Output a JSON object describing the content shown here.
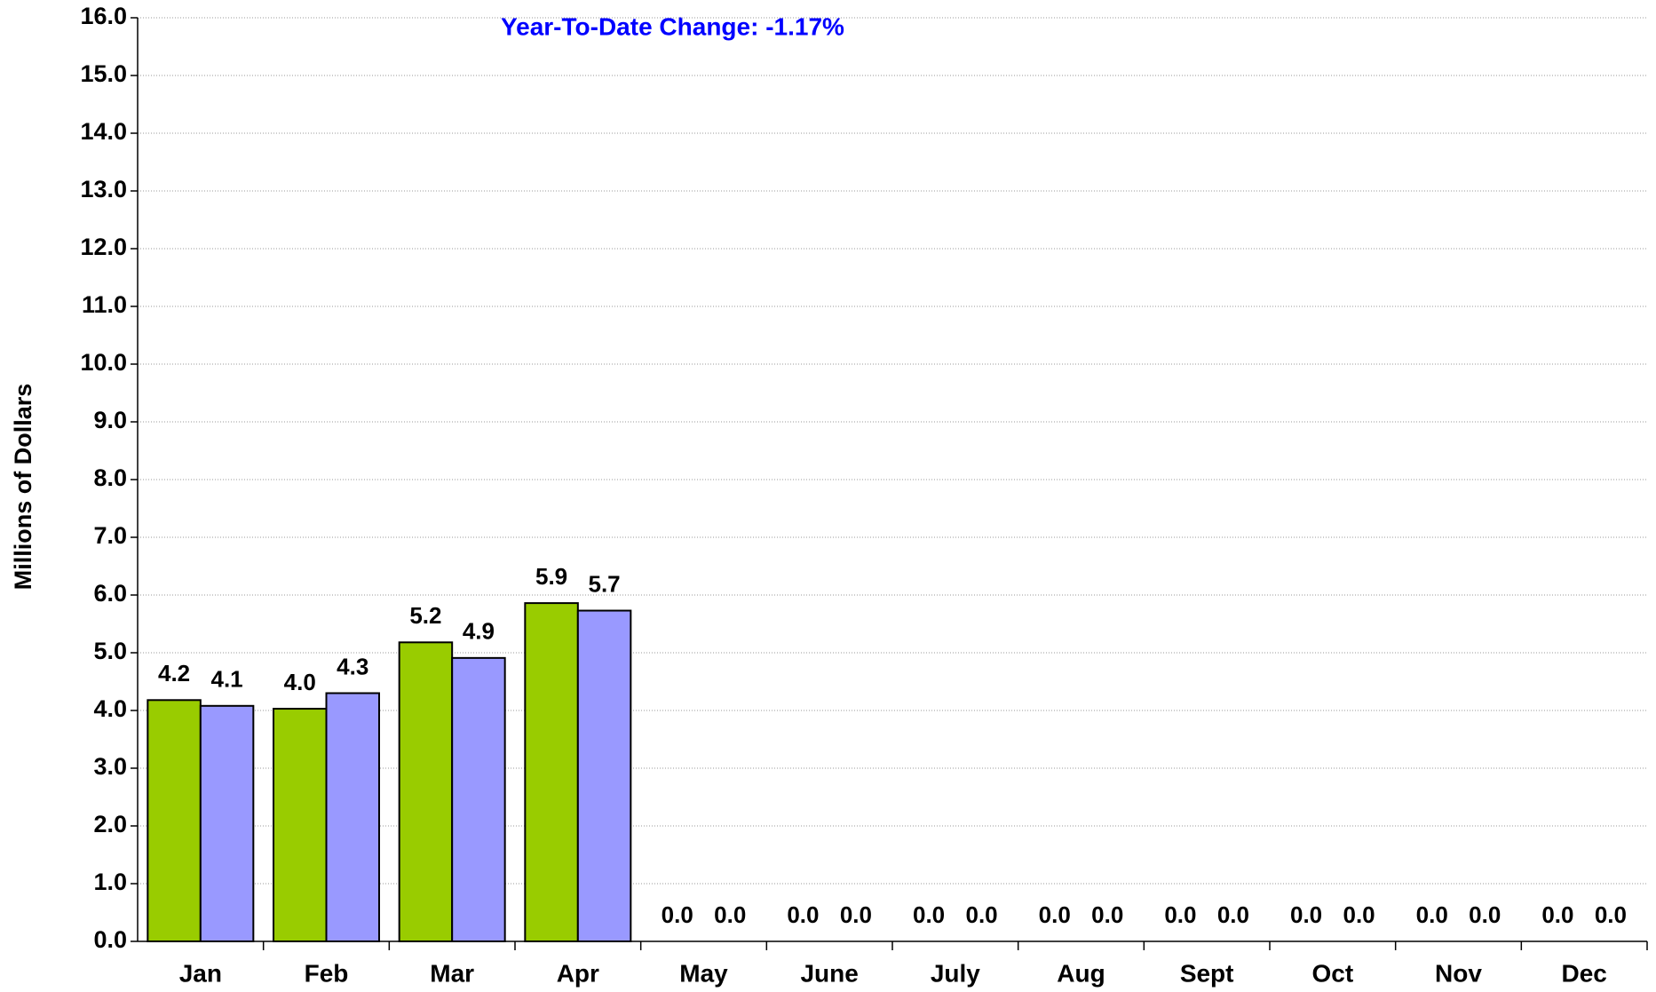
{
  "chart_data": {
    "type": "bar",
    "annotation": "Year-To-Date Change: -1.17%",
    "y_label": "Millions of Dollars",
    "categories": [
      "Jan",
      "Feb",
      "Mar",
      "Apr",
      "May",
      "June",
      "July",
      "Aug",
      "Sept",
      "Oct",
      "Nov",
      "Dec"
    ],
    "series": [
      {
        "color": "#99cc00",
        "values": [
          4.18,
          4.03,
          5.18,
          5.86,
          0,
          0,
          0,
          0,
          0,
          0,
          0,
          0
        ],
        "value_labels": [
          "4.2",
          "4.0",
          "5.2",
          "5.9",
          "0.0",
          "0.0",
          "0.0",
          "0.0",
          "0.0",
          "0.0",
          "0.0",
          "0.0"
        ]
      },
      {
        "color": "#9999ff",
        "values": [
          4.08,
          4.3,
          4.91,
          5.73,
          0,
          0,
          0,
          0,
          0,
          0,
          0,
          0
        ],
        "value_labels": [
          "4.1",
          "4.3",
          "4.9",
          "5.7",
          "0.0",
          "0.0",
          "0.0",
          "0.0",
          "0.0",
          "0.0",
          "0.0",
          "0.0"
        ]
      }
    ],
    "ylim": [
      0,
      16
    ],
    "yticks": [
      {
        "value": 0,
        "label": "0.0"
      },
      {
        "value": 1,
        "label": "1.0"
      },
      {
        "value": 2,
        "label": "2.0"
      },
      {
        "value": 3,
        "label": "3.0"
      },
      {
        "value": 4,
        "label": "4.0"
      },
      {
        "value": 5,
        "label": "5.0"
      },
      {
        "value": 6,
        "label": "6.0"
      },
      {
        "value": 7,
        "label": "7.0"
      },
      {
        "value": 8,
        "label": "8.0"
      },
      {
        "value": 9,
        "label": "9.0"
      },
      {
        "value": 10,
        "label": "10.0"
      },
      {
        "value": 11,
        "label": "11.0"
      },
      {
        "value": 12,
        "label": "12.0"
      },
      {
        "value": 13,
        "label": "13.0"
      },
      {
        "value": 14,
        "label": "14.0"
      },
      {
        "value": 15,
        "label": "15.0"
      },
      {
        "value": 16,
        "label": "16.0"
      }
    ],
    "grid": true,
    "annotation_color": "#0000ff"
  }
}
